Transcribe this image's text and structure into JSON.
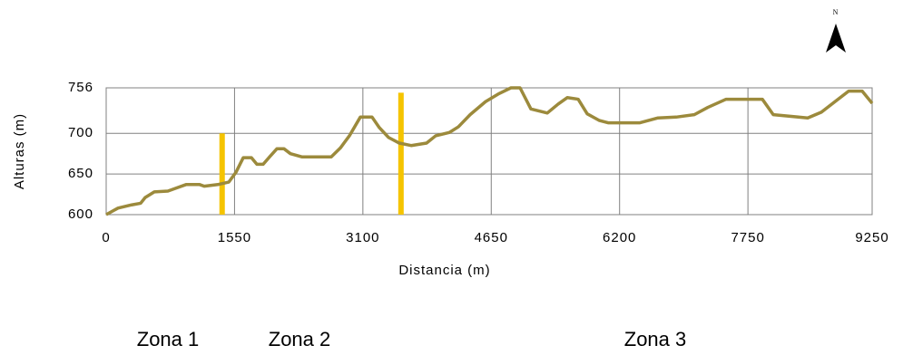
{
  "chart_data": {
    "type": "line",
    "xlabel": "Distancia (m)",
    "ylabel": "Alturas (m)",
    "x": [
      0,
      142,
      307,
      416,
      471,
      581,
      745,
      855,
      964,
      1129,
      1184,
      1348,
      1480,
      1567,
      1655,
      1754,
      1820,
      1896,
      1973,
      2061,
      2148,
      2225,
      2367,
      2718,
      2828,
      2937,
      3069,
      3211,
      3299,
      3409,
      3540,
      3683,
      3869,
      3979,
      4143,
      4253,
      4395,
      4581,
      4746,
      4888,
      4998,
      5129,
      5327,
      5458,
      5568,
      5700,
      5809,
      5952,
      6061,
      6445,
      6664,
      6883,
      7102,
      7266,
      7486,
      7924,
      8056,
      8472,
      8637,
      8801,
      8966,
      9130,
      9250
    ],
    "series": [
      {
        "color": "#9c8a3c",
        "values": [
          600,
          608,
          612,
          614,
          621,
          628,
          629,
          633,
          637,
          637,
          635,
          637,
          640,
          652,
          670,
          670,
          662,
          662,
          671,
          681,
          681,
          675,
          671,
          671,
          682,
          697,
          720,
          720,
          707,
          695,
          688,
          685,
          688,
          697,
          701,
          708,
          723,
          739,
          749,
          756,
          756,
          730,
          725,
          736,
          744,
          742,
          724,
          716,
          713,
          713,
          719,
          720,
          723,
          732,
          742,
          742,
          723,
          719,
          726,
          739,
          752,
          752,
          737
        ]
      }
    ],
    "markers": {
      "color": "#f5c400",
      "x": [
        1400,
        3560
      ],
      "values": [
        700,
        750
      ]
    },
    "xlim": [
      0,
      9250
    ],
    "xticks": [
      0,
      1550,
      3100,
      4650,
      6200,
      7750,
      9250
    ],
    "ylim": [
      600,
      756
    ],
    "yticks": [
      600,
      650,
      700,
      756
    ],
    "grid": true,
    "annotations": [
      "Zona 1",
      "Zona 2",
      "Zona 3"
    ],
    "compass": "N"
  }
}
